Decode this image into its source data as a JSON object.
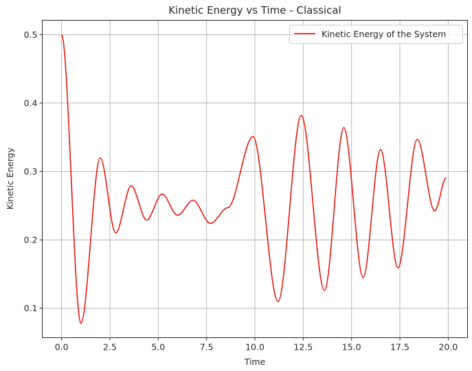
{
  "chart_data": {
    "type": "line",
    "title": "Kinetic Energy vs Time - Classical",
    "xlabel": "Time",
    "ylabel": "Kinetic Energy",
    "xlim": [
      -1.0,
      21.0
    ],
    "ylim": [
      0.057,
      0.521
    ],
    "xticks": [
      0.0,
      2.5,
      5.0,
      7.5,
      10.0,
      12.5,
      15.0,
      17.5,
      20.0
    ],
    "xtick_labels": [
      "0.0",
      "2.5",
      "5.0",
      "7.5",
      "10.0",
      "12.5",
      "15.0",
      "17.5",
      "20.0"
    ],
    "yticks": [
      0.1,
      0.2,
      0.3,
      0.4,
      0.5
    ],
    "ytick_labels": [
      "0.1",
      "0.2",
      "0.3",
      "0.4",
      "0.5"
    ],
    "grid": true,
    "legend_position": "top-right",
    "series": [
      {
        "name": "Kinetic Energy of the System",
        "color": "#e8150c",
        "x": [
          0.0,
          1.0,
          2.0,
          2.8,
          3.6,
          4.4,
          5.2,
          6.0,
          6.8,
          7.7,
          8.6,
          9.9,
          11.2,
          12.4,
          13.6,
          14.6,
          15.6,
          16.5,
          17.4,
          18.4,
          19.3,
          19.9
        ],
        "y": [
          0.5,
          0.078,
          0.32,
          0.21,
          0.279,
          0.229,
          0.267,
          0.236,
          0.258,
          0.224,
          0.247,
          0.351,
          0.11,
          0.382,
          0.126,
          0.364,
          0.145,
          0.332,
          0.159,
          0.347,
          0.242,
          0.291
        ]
      }
    ]
  }
}
